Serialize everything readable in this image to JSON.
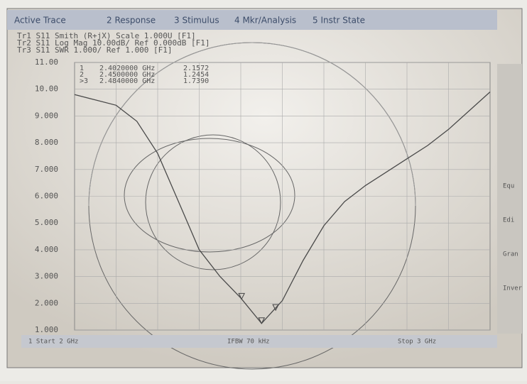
{
  "menu": [
    "Active Trace",
    "2 Response",
    "3 Stimulus",
    "4 Mkr/Analysis",
    "5 Instr State"
  ],
  "trace_info": [
    "Tr1 S11 Smith (R+jX) Scale 1.000U [F1]",
    "Tr2 S11 Log Mag 10.00dB/ Ref 0.000dB [F1]",
    "Tr3 S11 SWR 1.000/ Ref 1.000 [F1]"
  ],
  "footer": [
    "1 Start 2 GHz",
    "IFBW 70 kHz",
    "Stop 3 GHz"
  ],
  "side_buttons": [
    "Equ",
    "Edi",
    "Gran",
    "Inver"
  ],
  "chart_data": {
    "type": "line",
    "color": "#4a4a4a",
    "x": [
      2.0,
      2.05,
      2.1,
      2.15,
      2.2,
      2.25,
      2.3,
      2.35,
      2.4,
      2.45,
      2.5,
      2.55,
      2.6,
      2.65,
      2.7,
      2.75,
      2.8,
      2.85,
      2.9,
      2.95,
      3.0
    ],
    "values": [
      9.8,
      9.6,
      9.4,
      8.8,
      7.6,
      5.8,
      4.0,
      3.0,
      2.2,
      1.25,
      2.1,
      3.6,
      4.9,
      5.8,
      6.4,
      6.9,
      7.4,
      7.9,
      8.5,
      9.2,
      9.9
    ],
    "xlim": [
      2,
      3
    ],
    "ylim": [
      1,
      11
    ],
    "yticks": [
      {
        "value": 11,
        "label": "11.00"
      },
      {
        "value": 10,
        "label": "10.00"
      },
      {
        "value": 9,
        "label": "9.000"
      },
      {
        "value": 8,
        "label": "8.000"
      },
      {
        "value": 7,
        "label": "7.000"
      },
      {
        "value": 6,
        "label": "6.000"
      },
      {
        "value": 5,
        "label": "5.000"
      },
      {
        "value": 4,
        "label": "4.000"
      },
      {
        "value": 3,
        "label": "3.000"
      },
      {
        "value": 2,
        "label": "2.000"
      },
      {
        "value": 1,
        "label": "1.000"
      }
    ],
    "grid": true,
    "markers": {
      "names": [
        "1",
        "2",
        ">3"
      ],
      "x": [
        2.402,
        2.45,
        2.484
      ],
      "x_labels": [
        "2.4020000 GHz",
        "2.4500000 GHz",
        "2.4840000 GHz"
      ],
      "values": [
        2.1572,
        1.2454,
        1.739
      ],
      "value_labels": [
        "2.1572",
        "1.2454",
        "1.7390"
      ]
    }
  }
}
